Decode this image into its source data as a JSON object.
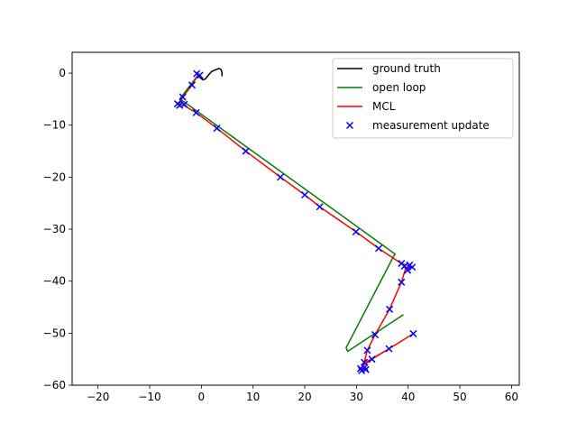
{
  "chart_data": {
    "type": "line",
    "title": "",
    "xlabel": "",
    "ylabel": "",
    "xlim": [
      -25,
      61.5
    ],
    "ylim": [
      -60,
      4
    ],
    "xticks": [
      -20,
      -10,
      0,
      10,
      20,
      30,
      40,
      50,
      60
    ],
    "yticks": [
      0,
      -10,
      -20,
      -30,
      -40,
      -50,
      -60
    ],
    "xtick_labels": [
      "−20",
      "−10",
      "0",
      "10",
      "20",
      "30",
      "40",
      "50",
      "60"
    ],
    "ytick_labels": [
      "0",
      "−10",
      "−20",
      "−30",
      "−40",
      "−50",
      "−60"
    ],
    "grid": false,
    "legend_position": "top-right",
    "series": [
      {
        "name": "ground truth",
        "kind": "line",
        "color": "#000000",
        "x": [
          -0.8,
          -0.2,
          0.3,
          0.8,
          1.2,
          1.6,
          2.0,
          2.4,
          2.9,
          3.4,
          3.8,
          4.0,
          4.0
        ],
        "y": [
          -0.6,
          -0.9,
          -1.3,
          -1.1,
          -0.6,
          -0.1,
          0.3,
          0.5,
          0.7,
          0.9,
          0.7,
          0.1,
          -0.5
        ]
      },
      {
        "name": "open loop",
        "kind": "line",
        "color": "#008000",
        "x": [
          -0.8,
          -4.2,
          -3.8,
          37.5,
          37.2,
          28.0,
          28.3,
          39.0
        ],
        "y": [
          -0.6,
          -5.0,
          -5.2,
          -34.8,
          -35.2,
          -52.8,
          -53.5,
          -46.5
        ]
      },
      {
        "name": "MCL",
        "kind": "line",
        "color": "#ff0000",
        "x": [
          -0.6,
          -1.8,
          -3.6,
          -4.2,
          -3.6,
          -1.0,
          3.0,
          8.6,
          15.3,
          20.0,
          22.9,
          29.9,
          34.3,
          38.7,
          40.6,
          39.5,
          38.7,
          36.4,
          33.6,
          32.1,
          31.5,
          31.2,
          33.0,
          36.3,
          41.0,
          36.3,
          32.1,
          30.9,
          31.6
        ],
        "y": [
          -0.2,
          -2.3,
          -4.6,
          -5.9,
          -6.1,
          -7.6,
          -10.6,
          -15.0,
          -20.0,
          -23.4,
          -25.7,
          -30.5,
          -33.7,
          -36.6,
          -37.2,
          -37.6,
          -40.2,
          -45.4,
          -50.3,
          -53.3,
          -55.6,
          -56.3,
          -55.0,
          -53.0,
          -50.1,
          -53.0,
          -55.4,
          -56.7,
          -57.1
        ]
      },
      {
        "name": "measurement update",
        "kind": "scatter",
        "marker": "x",
        "color": "#0000ff",
        "x": [
          -0.9,
          -0.3,
          -1.8,
          -3.6,
          -4.6,
          -4.2,
          -3.3,
          -1.0,
          3.0,
          8.6,
          15.3,
          20.0,
          22.9,
          29.9,
          34.3,
          38.7,
          39.3,
          40.3,
          40.8,
          39.9,
          38.7,
          36.4,
          33.6,
          32.1,
          31.5,
          30.8,
          31.6,
          31.0,
          31.8,
          33.0,
          36.3,
          41.0
        ],
        "y": [
          -0.1,
          -0.4,
          -2.3,
          -4.6,
          -5.9,
          -6.2,
          -6.0,
          -7.6,
          -10.6,
          -15.0,
          -20.0,
          -23.4,
          -25.7,
          -30.5,
          -33.7,
          -36.6,
          -37.1,
          -36.9,
          -37.3,
          -37.9,
          -40.2,
          -45.4,
          -50.3,
          -53.3,
          -55.6,
          -56.8,
          -56.6,
          -57.2,
          -57.0,
          -55.0,
          -53.0,
          -50.1
        ]
      }
    ]
  }
}
